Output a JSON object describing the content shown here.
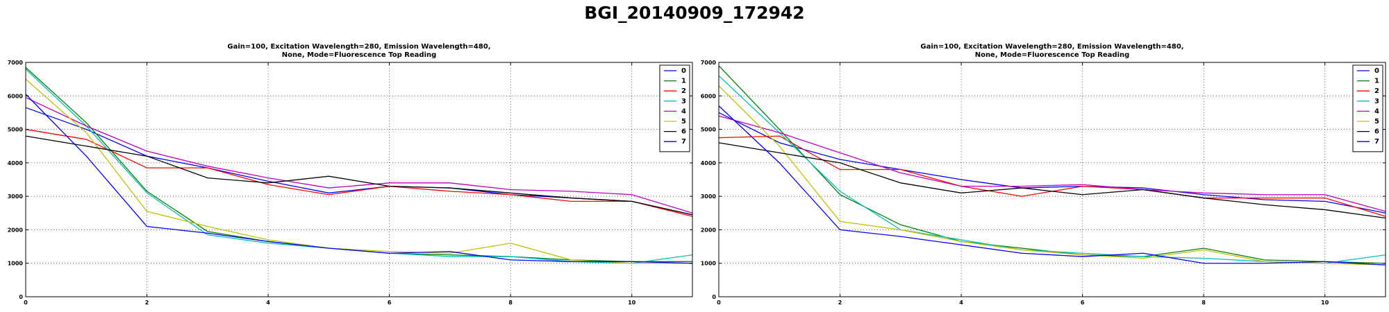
{
  "figure_title": "BGI_20140909_172942",
  "chart_data": [
    {
      "type": "line",
      "title": "Gain=100, Excitation Wavelength=280, Emission Wavelength=480,\nNone, Mode=Fluorescence Top Reading",
      "xlabel": "",
      "ylabel": "",
      "xlim": [
        0,
        11
      ],
      "ylim": [
        0,
        7000
      ],
      "xticks": [
        0,
        2,
        4,
        6,
        8,
        10
      ],
      "yticks": [
        0,
        1000,
        2000,
        3000,
        4000,
        5000,
        6000,
        7000
      ],
      "grid": true,
      "legend": "top-right",
      "x": [
        0,
        1,
        2,
        3,
        4,
        5,
        6,
        7,
        8,
        9,
        10,
        11
      ],
      "series": [
        {
          "name": "0",
          "color": "#0000ff",
          "values": [
            5650,
            5000,
            4200,
            3850,
            3450,
            3100,
            3300,
            3250,
            3050,
            2950,
            2850,
            2450
          ]
        },
        {
          "name": "1",
          "color": "#008000",
          "values": [
            6850,
            5200,
            3150,
            1950,
            1650,
            1450,
            1300,
            1250,
            1200,
            1100,
            1050,
            1050
          ]
        },
        {
          "name": "2",
          "color": "#ff0000",
          "values": [
            5000,
            4700,
            3850,
            3850,
            3350,
            3050,
            3300,
            3150,
            3050,
            2850,
            2850,
            2400
          ]
        },
        {
          "name": "3",
          "color": "#00bfbf",
          "values": [
            6800,
            5100,
            3100,
            1850,
            1600,
            1450,
            1300,
            1200,
            1200,
            1050,
            1000,
            1250
          ]
        },
        {
          "name": "4",
          "color": "#bf00bf",
          "values": [
            5950,
            5100,
            4350,
            3900,
            3550,
            3250,
            3400,
            3400,
            3200,
            3150,
            3050,
            2500
          ]
        },
        {
          "name": "5",
          "color": "#bfbf00",
          "values": [
            6500,
            4900,
            2550,
            2100,
            1700,
            1450,
            1350,
            1300,
            1600,
            1100,
            1000,
            1000
          ]
        },
        {
          "name": "6",
          "color": "#000000",
          "values": [
            4800,
            4500,
            4200,
            3550,
            3400,
            3600,
            3300,
            3250,
            3100,
            2950,
            2850,
            2450
          ]
        },
        {
          "name": "7",
          "color": "#0000ff",
          "values": [
            6050,
            4200,
            2100,
            1900,
            1650,
            1450,
            1300,
            1350,
            1100,
            1050,
            1050,
            1000
          ]
        }
      ]
    },
    {
      "type": "line",
      "title": "Gain=100, Excitation Wavelength=280, Emission Wavelength=480,\nNone, Mode=Fluorescence Top Reading",
      "xlabel": "",
      "ylabel": "",
      "xlim": [
        0,
        11
      ],
      "ylim": [
        0,
        7000
      ],
      "xticks": [
        0,
        2,
        4,
        6,
        8,
        10
      ],
      "yticks": [
        0,
        1000,
        2000,
        3000,
        4000,
        5000,
        6000,
        7000
      ],
      "grid": true,
      "legend": "top-right",
      "x": [
        0,
        1,
        2,
        3,
        4,
        5,
        6,
        7,
        8,
        9,
        10,
        11
      ],
      "series": [
        {
          "name": "0",
          "color": "#0000ff",
          "values": [
            5500,
            4600,
            4100,
            3800,
            3500,
            3250,
            3300,
            3250,
            3050,
            2900,
            2850,
            2500
          ]
        },
        {
          "name": "1",
          "color": "#008000",
          "values": [
            6900,
            5000,
            3050,
            2150,
            1650,
            1450,
            1250,
            1200,
            1450,
            1100,
            1050,
            1000
          ]
        },
        {
          "name": "2",
          "color": "#ff0000",
          "values": [
            4750,
            4800,
            3800,
            3800,
            3300,
            3000,
            3300,
            3200,
            2950,
            2950,
            2950,
            2400
          ]
        },
        {
          "name": "3",
          "color": "#00bfbf",
          "values": [
            6600,
            4900,
            3150,
            2000,
            1700,
            1400,
            1300,
            1200,
            1150,
            1050,
            1000,
            1250
          ]
        },
        {
          "name": "4",
          "color": "#bf00bf",
          "values": [
            5400,
            4900,
            4300,
            3700,
            3300,
            3300,
            3350,
            3200,
            3100,
            3050,
            3050,
            2550
          ]
        },
        {
          "name": "5",
          "color": "#bfbf00",
          "values": [
            6300,
            4500,
            2250,
            2000,
            1650,
            1400,
            1250,
            1150,
            1400,
            1050,
            1000,
            950
          ]
        },
        {
          "name": "6",
          "color": "#000000",
          "values": [
            4600,
            4300,
            4000,
            3400,
            3100,
            3250,
            3050,
            3200,
            2950,
            2750,
            2600,
            2350
          ]
        },
        {
          "name": "7",
          "color": "#0000ff",
          "values": [
            5700,
            4000,
            2000,
            1800,
            1550,
            1300,
            1200,
            1300,
            1000,
            1000,
            1050,
            950
          ]
        }
      ]
    }
  ]
}
